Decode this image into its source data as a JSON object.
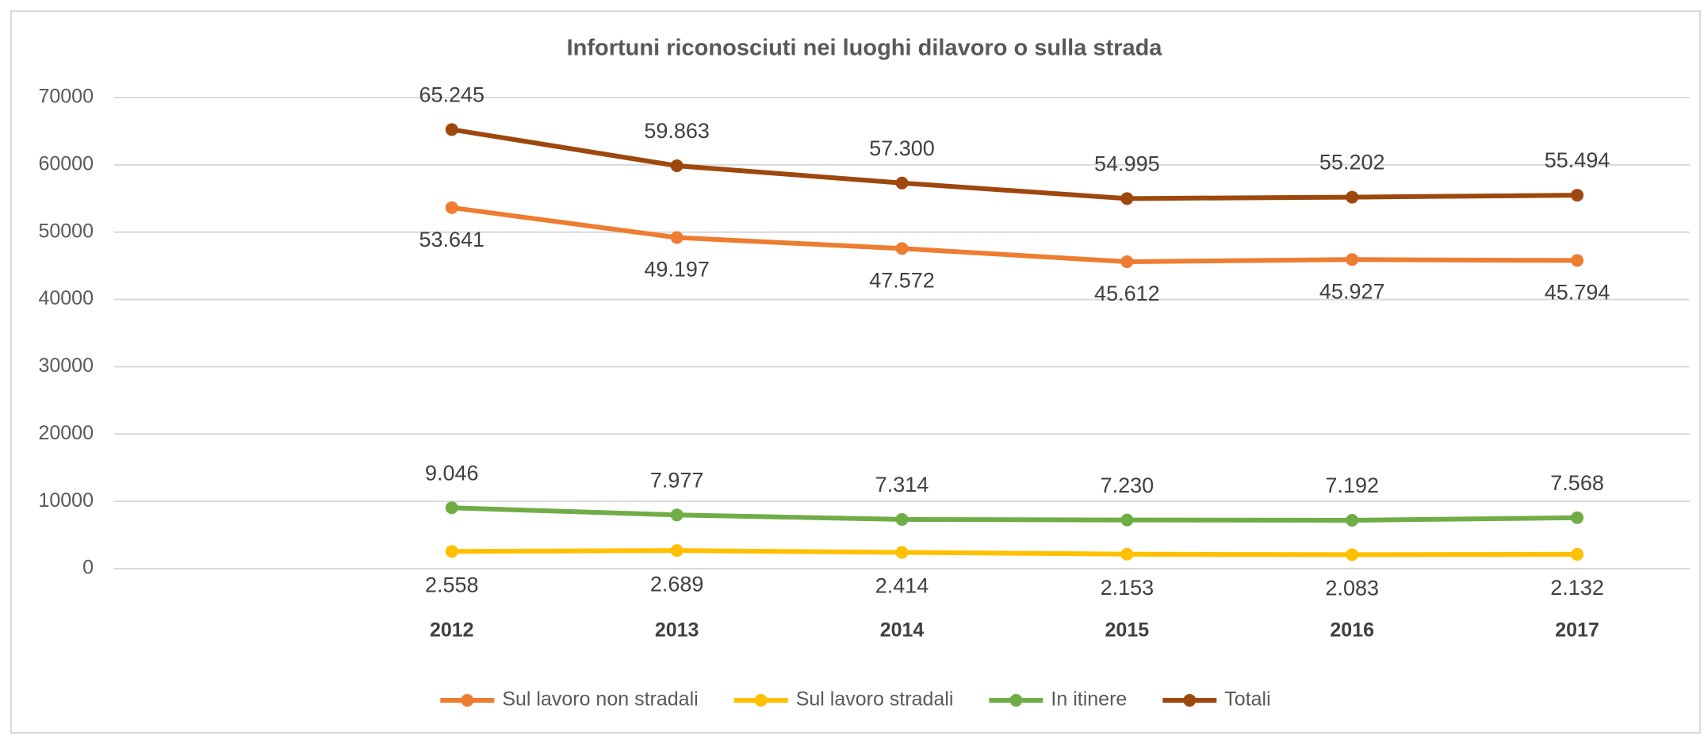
{
  "chart_data": {
    "type": "line",
    "title": "Infortuni riconosciuti nei luoghi dilavoro o sulla strada",
    "categories": [
      null,
      "2012",
      "2013",
      "2014",
      "2015",
      "2016",
      "2017"
    ],
    "series": [
      {
        "name": "Sul lavoro non stradali",
        "color": "#ED7D31",
        "values": [
          null,
          53641,
          49197,
          47572,
          45612,
          45927,
          45794
        ],
        "value_labels": [
          null,
          "53.641",
          "49.197",
          "47.572",
          "45.612",
          "45.927",
          "45.794"
        ]
      },
      {
        "name": "Sul lavoro stradali",
        "color": "#FFC000",
        "values": [
          null,
          2558,
          2689,
          2414,
          2153,
          2083,
          2132
        ],
        "value_labels": [
          null,
          "2.558",
          "2.689",
          "2.414",
          "2.153",
          "2.083",
          "2.132"
        ]
      },
      {
        "name": "In itinere",
        "color": "#70AD47",
        "values": [
          null,
          9046,
          7977,
          7314,
          7230,
          7192,
          7568
        ],
        "value_labels": [
          null,
          "9.046",
          "7.977",
          "7.314",
          "7.230",
          "7.192",
          "7.568"
        ]
      },
      {
        "name": "Totali",
        "color": "#9E480E",
        "values": [
          null,
          65245,
          59863,
          57300,
          54995,
          55202,
          55494
        ],
        "value_labels": [
          null,
          "65.245",
          "59.863",
          "57.300",
          "54.995",
          "55.202",
          "55.494"
        ]
      }
    ],
    "ylim": [
      0,
      70000
    ],
    "yticks": [
      0,
      10000,
      20000,
      30000,
      40000,
      50000,
      60000,
      70000
    ],
    "grid": true,
    "legend": "bottom"
  }
}
